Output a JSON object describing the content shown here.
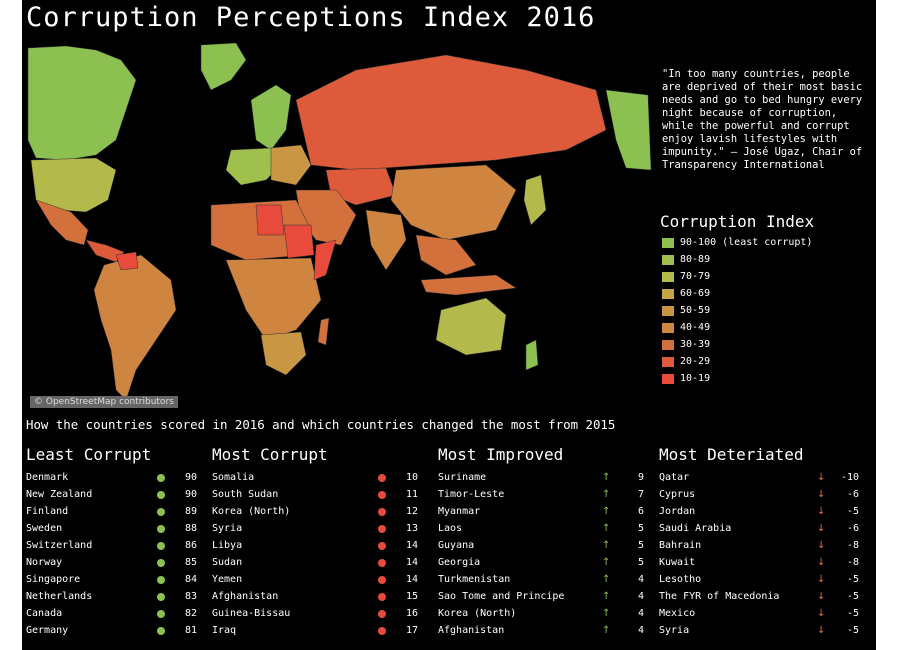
{
  "title": "Corruption Perceptions Index 2016",
  "quote": "\"In too many countries, people are deprived of their most basic needs and go to bed hungry every night because of corruption, while the powerful and corrupt enjoy lavish lifestyles with impunity.\" – José Ugaz, Chair of Transparency International",
  "legend": {
    "title": "Corruption Index",
    "items": [
      {
        "label": "90-100 (least corrupt)",
        "color": "#8cc152"
      },
      {
        "label": "80-89",
        "color": "#a0c04e"
      },
      {
        "label": "70-79",
        "color": "#b3b94a"
      },
      {
        "label": "60-69",
        "color": "#c4a647"
      },
      {
        "label": "50-59",
        "color": "#c99744"
      },
      {
        "label": "40-49",
        "color": "#cf8440"
      },
      {
        "label": "30-39",
        "color": "#d4703c"
      },
      {
        "label": "20-29",
        "color": "#dd5a3a"
      },
      {
        "label": "10-19",
        "color": "#e84a3c"
      }
    ]
  },
  "attribution": "© OpenStreetMap contributors",
  "subtitle": "How the countries scored in 2016 and which countries changed the most from 2015",
  "colors": {
    "green": "#8cc152",
    "red": "#e84a3c",
    "up": "#8cc152",
    "down": "#e86a3c"
  },
  "least_corrupt": {
    "heading": "Least Corrupt",
    "rows": [
      {
        "country": "Denmark",
        "score": "90"
      },
      {
        "country": "New Zealand",
        "score": "90"
      },
      {
        "country": "Finland",
        "score": "89"
      },
      {
        "country": "Sweden",
        "score": "88"
      },
      {
        "country": "Switzerland",
        "score": "86"
      },
      {
        "country": "Norway",
        "score": "85"
      },
      {
        "country": "Singapore",
        "score": "84"
      },
      {
        "country": "Netherlands",
        "score": "83"
      },
      {
        "country": "Canada",
        "score": "82"
      },
      {
        "country": "Germany",
        "score": "81"
      }
    ]
  },
  "most_corrupt": {
    "heading": "Most Corrupt",
    "rows": [
      {
        "country": "Somalia",
        "score": "10"
      },
      {
        "country": "South Sudan",
        "score": "11"
      },
      {
        "country": "Korea (North)",
        "score": "12"
      },
      {
        "country": "Syria",
        "score": "13"
      },
      {
        "country": "Libya",
        "score": "14"
      },
      {
        "country": "Sudan",
        "score": "14"
      },
      {
        "country": "Yemen",
        "score": "14"
      },
      {
        "country": "Afghanistan",
        "score": "15"
      },
      {
        "country": "Guinea-Bissau",
        "score": "16"
      },
      {
        "country": "Iraq",
        "score": "17"
      }
    ]
  },
  "most_improved": {
    "heading": "Most Improved",
    "rows": [
      {
        "country": "Suriname",
        "change": "9"
      },
      {
        "country": "Timor-Leste",
        "change": "7"
      },
      {
        "country": "Myanmar",
        "change": "6"
      },
      {
        "country": "Laos",
        "change": "5"
      },
      {
        "country": "Guyana",
        "change": "5"
      },
      {
        "country": "Georgia",
        "change": "5"
      },
      {
        "country": "Turkmenistan",
        "change": "4"
      },
      {
        "country": "Sao Tome and Principe",
        "change": "4"
      },
      {
        "country": "Korea (North)",
        "change": "4"
      },
      {
        "country": "Afghanistan",
        "change": "4"
      }
    ]
  },
  "most_deteriated": {
    "heading": "Most Deteriated",
    "rows": [
      {
        "country": "Qatar",
        "change": "-10"
      },
      {
        "country": "Cyprus",
        "change": "-6"
      },
      {
        "country": "Jordan",
        "change": "-5"
      },
      {
        "country": "Saudi Arabia",
        "change": "-6"
      },
      {
        "country": "Bahrain",
        "change": "-8"
      },
      {
        "country": "Kuwait",
        "change": "-8"
      },
      {
        "country": "Lesotho",
        "change": "-5"
      },
      {
        "country": "The FYR of Macedonia",
        "change": "-5"
      },
      {
        "country": "Mexico",
        "change": "-5"
      },
      {
        "country": "Syria",
        "change": "-5"
      }
    ]
  }
}
